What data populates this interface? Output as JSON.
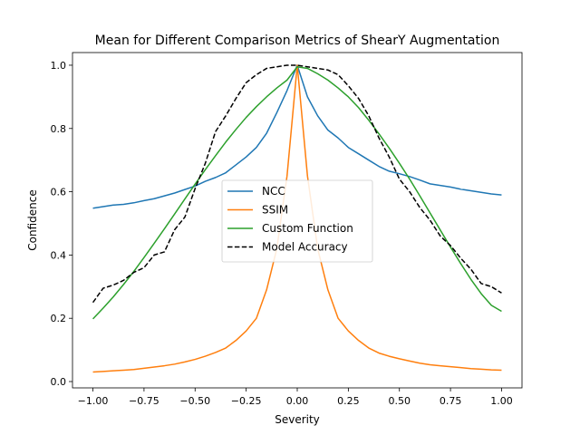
{
  "chart_data": {
    "type": "line",
    "title": "Mean for Different Comparison Metrics of ShearY Augmentation",
    "xlabel": "Severity",
    "ylabel": "Confidence",
    "xlim": [
      -1.1,
      1.1
    ],
    "ylim": [
      -0.02,
      1.04
    ],
    "xticks": [
      -1.0,
      -0.75,
      -0.5,
      -0.25,
      0.0,
      0.25,
      0.5,
      0.75,
      1.0
    ],
    "xtick_labels": [
      "−1.00",
      "−0.75",
      "−0.50",
      "−0.25",
      "0.00",
      "0.25",
      "0.50",
      "0.75",
      "1.00"
    ],
    "yticks": [
      0.0,
      0.2,
      0.4,
      0.6,
      0.8,
      1.0
    ],
    "ytick_labels": [
      "0.0",
      "0.2",
      "0.4",
      "0.6",
      "0.8",
      "1.0"
    ],
    "grid": false,
    "legend_position": "center",
    "series": [
      {
        "name": "NCC",
        "color": "#1f77b4",
        "dash": "solid",
        "x": [
          -1.0,
          -0.95,
          -0.9,
          -0.85,
          -0.8,
          -0.75,
          -0.7,
          -0.65,
          -0.6,
          -0.55,
          -0.5,
          -0.45,
          -0.4,
          -0.35,
          -0.3,
          -0.25,
          -0.2,
          -0.15,
          -0.1,
          -0.05,
          0.0,
          0.05,
          0.1,
          0.15,
          0.2,
          0.25,
          0.3,
          0.35,
          0.4,
          0.45,
          0.5,
          0.55,
          0.6,
          0.65,
          0.7,
          0.75,
          0.8,
          0.85,
          0.9,
          0.95,
          1.0
        ],
        "y": [
          0.548,
          0.553,
          0.558,
          0.56,
          0.565,
          0.572,
          0.578,
          0.587,
          0.596,
          0.607,
          0.618,
          0.633,
          0.645,
          0.66,
          0.685,
          0.71,
          0.74,
          0.785,
          0.85,
          0.92,
          1.0,
          0.9,
          0.84,
          0.795,
          0.77,
          0.74,
          0.72,
          0.7,
          0.68,
          0.665,
          0.657,
          0.648,
          0.637,
          0.625,
          0.62,
          0.615,
          0.608,
          0.603,
          0.598,
          0.593,
          0.59
        ]
      },
      {
        "name": "SSIM",
        "color": "#ff7f0e",
        "dash": "solid",
        "x": [
          -1.0,
          -0.95,
          -0.9,
          -0.85,
          -0.8,
          -0.75,
          -0.7,
          -0.65,
          -0.6,
          -0.55,
          -0.5,
          -0.45,
          -0.4,
          -0.35,
          -0.3,
          -0.25,
          -0.2,
          -0.15,
          -0.1,
          -0.05,
          0.0,
          0.05,
          0.1,
          0.15,
          0.2,
          0.25,
          0.3,
          0.35,
          0.4,
          0.45,
          0.5,
          0.55,
          0.6,
          0.65,
          0.7,
          0.75,
          0.8,
          0.85,
          0.9,
          0.95,
          1.0
        ],
        "y": [
          0.03,
          0.032,
          0.034,
          0.036,
          0.038,
          0.042,
          0.046,
          0.05,
          0.055,
          0.062,
          0.07,
          0.08,
          0.092,
          0.106,
          0.13,
          0.16,
          0.2,
          0.29,
          0.42,
          0.65,
          1.0,
          0.65,
          0.42,
          0.29,
          0.2,
          0.16,
          0.13,
          0.106,
          0.09,
          0.08,
          0.072,
          0.065,
          0.058,
          0.053,
          0.05,
          0.047,
          0.044,
          0.041,
          0.039,
          0.037,
          0.036
        ]
      },
      {
        "name": "Custom Function",
        "color": "#2ca02c",
        "dash": "solid",
        "x": [
          -1.0,
          -0.95,
          -0.9,
          -0.85,
          -0.8,
          -0.75,
          -0.7,
          -0.65,
          -0.6,
          -0.55,
          -0.5,
          -0.45,
          -0.4,
          -0.35,
          -0.3,
          -0.25,
          -0.2,
          -0.15,
          -0.1,
          -0.05,
          0.0,
          0.05,
          0.1,
          0.15,
          0.2,
          0.25,
          0.3,
          0.35,
          0.4,
          0.45,
          0.5,
          0.55,
          0.6,
          0.65,
          0.7,
          0.75,
          0.8,
          0.85,
          0.9,
          0.95,
          1.0
        ],
        "y": [
          0.198,
          0.232,
          0.268,
          0.307,
          0.348,
          0.392,
          0.437,
          0.483,
          0.53,
          0.577,
          0.624,
          0.67,
          0.714,
          0.757,
          0.797,
          0.835,
          0.869,
          0.9,
          0.928,
          0.953,
          0.995,
          0.99,
          0.973,
          0.953,
          0.928,
          0.9,
          0.866,
          0.826,
          0.783,
          0.738,
          0.69,
          0.64,
          0.587,
          0.533,
          0.479,
          0.425,
          0.373,
          0.323,
          0.278,
          0.241,
          0.222
        ]
      },
      {
        "name": "Model Accuracy",
        "color": "#000000",
        "dash": "dashed",
        "x": [
          -1.0,
          -0.95,
          -0.9,
          -0.85,
          -0.8,
          -0.75,
          -0.7,
          -0.65,
          -0.6,
          -0.55,
          -0.5,
          -0.45,
          -0.4,
          -0.35,
          -0.3,
          -0.25,
          -0.2,
          -0.15,
          -0.1,
          -0.05,
          0.0,
          0.05,
          0.1,
          0.15,
          0.2,
          0.25,
          0.3,
          0.35,
          0.4,
          0.45,
          0.5,
          0.55,
          0.6,
          0.65,
          0.7,
          0.75,
          0.8,
          0.85,
          0.9,
          0.95,
          1.0
        ],
        "y": [
          0.25,
          0.295,
          0.305,
          0.32,
          0.345,
          0.36,
          0.4,
          0.41,
          0.48,
          0.52,
          0.61,
          0.69,
          0.79,
          0.84,
          0.895,
          0.945,
          0.97,
          0.99,
          0.995,
          1.0,
          1.0,
          0.995,
          0.99,
          0.985,
          0.97,
          0.935,
          0.895,
          0.84,
          0.77,
          0.71,
          0.64,
          0.6,
          0.55,
          0.51,
          0.46,
          0.43,
          0.39,
          0.355,
          0.31,
          0.3,
          0.28
        ]
      }
    ]
  }
}
